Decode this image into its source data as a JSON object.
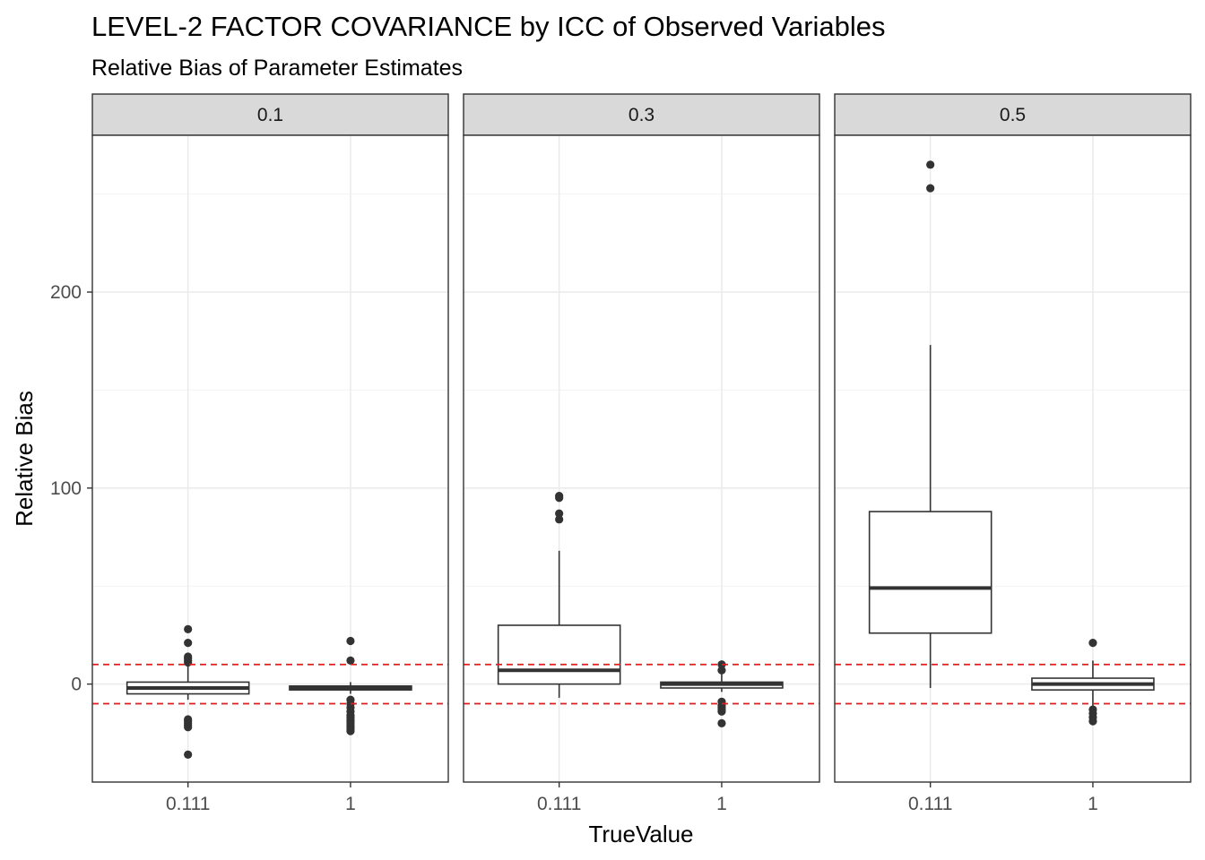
{
  "chart_data": {
    "type": "boxplot",
    "title": "LEVEL-2 FACTOR COVARIANCE by ICC of Observed Variables",
    "subtitle": "Relative Bias of Parameter Estimates",
    "xlabel": "TrueValue",
    "ylabel": "Relative Bias",
    "categories": [
      "0.111",
      "1"
    ],
    "y_ticks": [
      0,
      100,
      200
    ],
    "y_tick_labels": [
      "0",
      "100",
      "200"
    ],
    "ylim": [
      -50,
      280
    ],
    "reference_lines": [
      10,
      -10
    ],
    "reference_line_color": "#e41a1c",
    "grid": true,
    "facets": [
      {
        "label": "0.1",
        "boxes": [
          {
            "category": "0.111",
            "lower_whisker": -8,
            "q1": -5,
            "median": -2,
            "q3": 1,
            "upper_whisker": 9,
            "outliers": [
              28,
              21,
              14,
              13,
              12,
              11,
              -18,
              -19,
              -20,
              -21,
              -22,
              -36
            ]
          },
          {
            "category": "1",
            "lower_whisker": -5,
            "q1": -3,
            "median": -2,
            "q3": -1,
            "upper_whisker": 1,
            "outliers": [
              22,
              12,
              -8,
              -10,
              -12,
              -14,
              -16,
              -17,
              -18,
              -19,
              -20,
              -21,
              -22,
              -23,
              -24
            ]
          }
        ]
      },
      {
        "label": "0.3",
        "boxes": [
          {
            "category": "0.111",
            "lower_whisker": -7,
            "q1": 0,
            "median": 7,
            "q3": 30,
            "upper_whisker": 68,
            "outliers": [
              96,
              95,
              87,
              84
            ]
          },
          {
            "category": "1",
            "lower_whisker": -4,
            "q1": -2,
            "median": 0,
            "q3": 1,
            "upper_whisker": 5,
            "outliers": [
              10,
              7,
              -9,
              -11,
              -12,
              -13,
              -14,
              -20
            ]
          }
        ]
      },
      {
        "label": "0.5",
        "boxes": [
          {
            "category": "0.111",
            "lower_whisker": -2,
            "q1": 26,
            "median": 49,
            "q3": 88,
            "upper_whisker": 173,
            "outliers": [
              265,
              253
            ]
          },
          {
            "category": "1",
            "lower_whisker": -12,
            "q1": -3,
            "median": 0,
            "q3": 3,
            "upper_whisker": 12,
            "outliers": [
              21,
              -13,
              -15,
              -17,
              -19
            ]
          }
        ]
      }
    ]
  }
}
